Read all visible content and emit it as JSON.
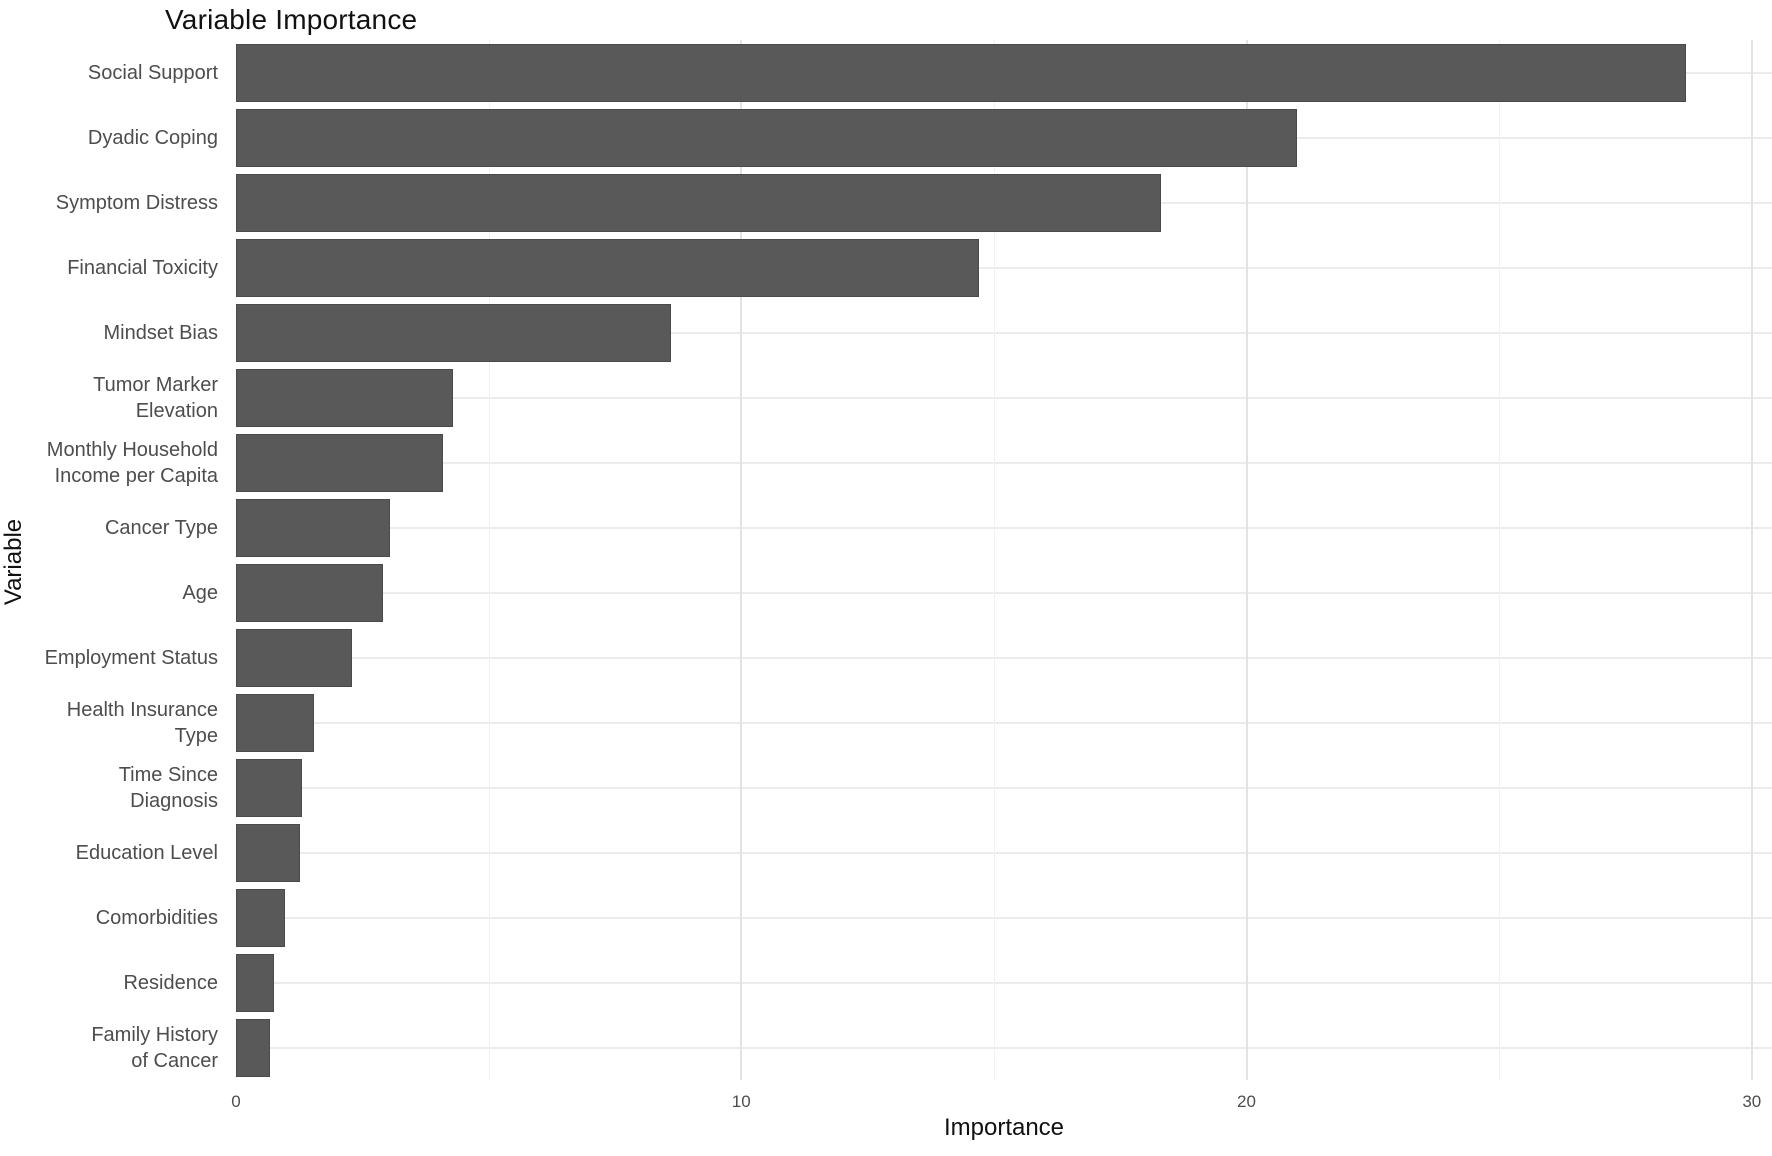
{
  "page": {
    "background_color": "#ffffff"
  },
  "chart_data": {
    "type": "bar",
    "orientation": "horizontal",
    "title": "Variable Importance",
    "xlabel": "Importance",
    "ylabel": "Variable",
    "categories": [
      "Social Support",
      "Dyadic Coping",
      "Symptom Distress",
      "Financial Toxicity",
      "Mindset Bias",
      "Tumor Marker\nElevation",
      "Monthly Household\nIncome per Capita",
      "Cancer Type",
      "Age",
      "Employment Status",
      "Health Insurance\nType",
      "Time Since\nDiagnosis",
      "Education Level",
      "Comorbidities",
      "Residence",
      "Family History\nof Cancer"
    ],
    "values": [
      28.7,
      21.0,
      18.3,
      14.7,
      8.6,
      4.3,
      4.1,
      3.05,
      2.9,
      2.3,
      1.55,
      1.31,
      1.27,
      0.97,
      0.75,
      0.68
    ],
    "x_ticks": [
      0,
      10,
      20,
      30
    ],
    "x_minor_ticks": [
      5,
      15,
      25
    ],
    "xlim": [
      0,
      30.4
    ],
    "grid": true,
    "legend": false,
    "colors": {
      "bar": "#595959",
      "bar_border": "#4a4a4a",
      "major_grid": "#e3e3e3",
      "minor_grid": "#f1f1f1",
      "row_grid": "#ececec",
      "title_text": "#111111",
      "axis_label_text": "#4d4d4d"
    }
  }
}
